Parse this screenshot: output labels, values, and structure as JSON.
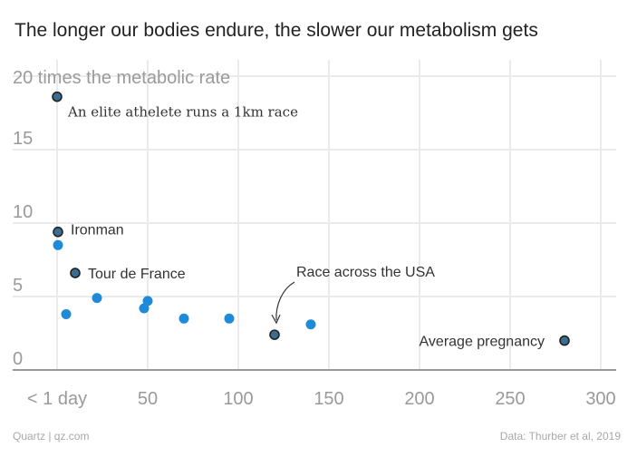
{
  "header": {
    "title": "The longer our bodies endure, the slower our metabolism gets"
  },
  "footer": {
    "source_left": "Quartz | qz.com",
    "source_right": "Data: Thurber et al, 2019"
  },
  "chart_data": {
    "type": "scatter",
    "title": "The longer our bodies endure, the slower our metabolism gets",
    "ylabel": "20 times the metabolic rate",
    "xlim": [
      0,
      305
    ],
    "ylim": [
      0,
      20
    ],
    "x_ticks": [
      {
        "value": 0,
        "label": "< 1 day"
      },
      {
        "value": 50,
        "label": "50"
      },
      {
        "value": 100,
        "label": "100"
      },
      {
        "value": 150,
        "label": "150"
      },
      {
        "value": 200,
        "label": "200"
      },
      {
        "value": 250,
        "label": "250"
      },
      {
        "value": 300,
        "label": "300"
      }
    ],
    "y_ticks": [
      {
        "value": 0,
        "label": "0"
      },
      {
        "value": 5,
        "label": "5"
      },
      {
        "value": 10,
        "label": "10"
      },
      {
        "value": 15,
        "label": "15"
      }
    ],
    "grid": true,
    "colors": {
      "highlight": "#3a6e91",
      "highlight_stroke": "#222222",
      "point": "#1f8ad8",
      "grid": "#ebebeb",
      "axis": "#999999"
    },
    "points": [
      {
        "x": 0,
        "y": 18.6,
        "highlight": true,
        "label": "An elite athelete runs a 1km race"
      },
      {
        "x": 0.5,
        "y": 9.4,
        "highlight": true,
        "label": "Ironman"
      },
      {
        "x": 0.5,
        "y": 8.5,
        "highlight": false,
        "label": ""
      },
      {
        "x": 10,
        "y": 6.6,
        "highlight": true,
        "label": "Tour de France"
      },
      {
        "x": 5,
        "y": 3.8,
        "highlight": false,
        "label": ""
      },
      {
        "x": 22,
        "y": 4.9,
        "highlight": false,
        "label": ""
      },
      {
        "x": 48,
        "y": 4.2,
        "highlight": false,
        "label": ""
      },
      {
        "x": 50,
        "y": 4.7,
        "highlight": false,
        "label": ""
      },
      {
        "x": 70,
        "y": 3.5,
        "highlight": false,
        "label": ""
      },
      {
        "x": 95,
        "y": 3.5,
        "highlight": false,
        "label": ""
      },
      {
        "x": 120,
        "y": 2.4,
        "highlight": true,
        "label": "Race across the USA"
      },
      {
        "x": 140,
        "y": 3.1,
        "highlight": false,
        "label": ""
      },
      {
        "x": 280,
        "y": 2.0,
        "highlight": true,
        "label": "Average pregnancy"
      }
    ]
  }
}
